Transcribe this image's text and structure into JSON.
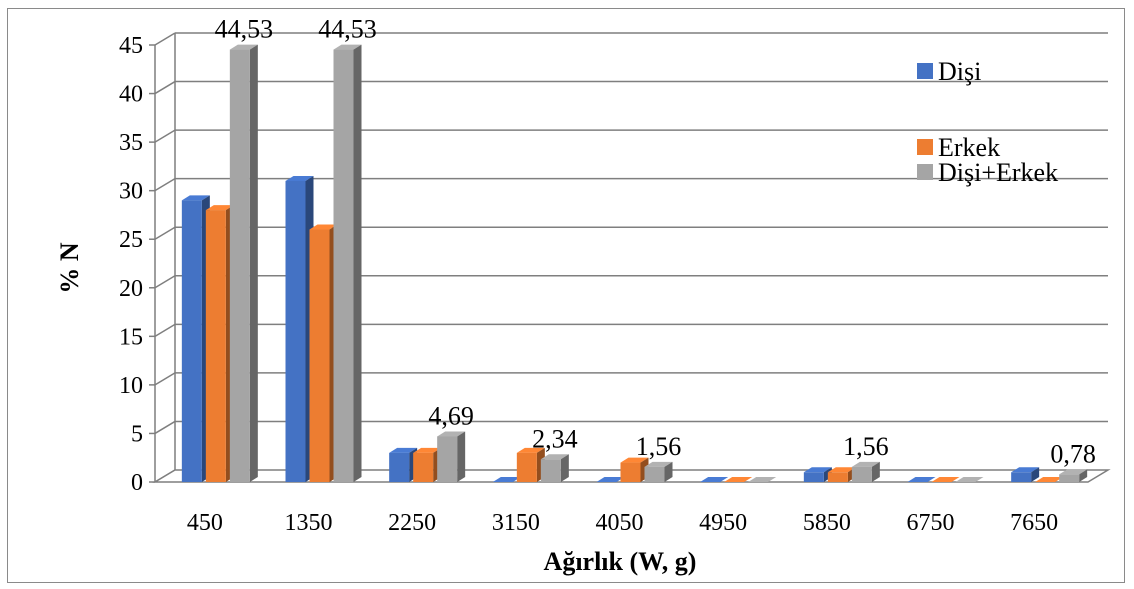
{
  "chart_data": {
    "type": "bar",
    "title": "",
    "xlabel": "Ağırlık (W, g)",
    "ylabel": "% N",
    "ylim": [
      0,
      45
    ],
    "yticks": [
      "0",
      "5",
      "10",
      "15",
      "20",
      "25",
      "30",
      "35",
      "40",
      "45"
    ],
    "categories": [
      "450",
      "1350",
      "2250",
      "3150",
      "4050",
      "4950",
      "5850",
      "6750",
      "7650"
    ],
    "series": [
      {
        "name": "Dişi",
        "color": "#4472c4",
        "values": [
          29,
          31,
          3,
          0,
          0,
          0,
          1,
          0,
          1
        ]
      },
      {
        "name": "Erkek",
        "color": "#ed7d31",
        "values": [
          28,
          26,
          3,
          3,
          2,
          0,
          1,
          0,
          0
        ]
      },
      {
        "name": "Dişi+Erkek",
        "color": "#a5a5a5",
        "values": [
          44.53,
          44.53,
          4.69,
          2.34,
          1.56,
          0,
          1.56,
          0,
          0.78
        ]
      }
    ],
    "data_labels": [
      {
        "category": "450",
        "series": "Dişi+Erkek",
        "text": "44,53"
      },
      {
        "category": "1350",
        "series": "Dişi+Erkek",
        "text": "44,53"
      },
      {
        "category": "2250",
        "series": "Dişi+Erkek",
        "text": "4,69"
      },
      {
        "category": "3150",
        "series": "Dişi+Erkek",
        "text": "2,34"
      },
      {
        "category": "4050",
        "series": "Dişi+Erkek",
        "text": "1,56"
      },
      {
        "category": "5850",
        "series": "Dişi+Erkek",
        "text": "1,56"
      },
      {
        "category": "7650",
        "series": "Dişi+Erkek",
        "text": "0,78"
      }
    ],
    "grid": true,
    "legend_position": "top-right"
  }
}
